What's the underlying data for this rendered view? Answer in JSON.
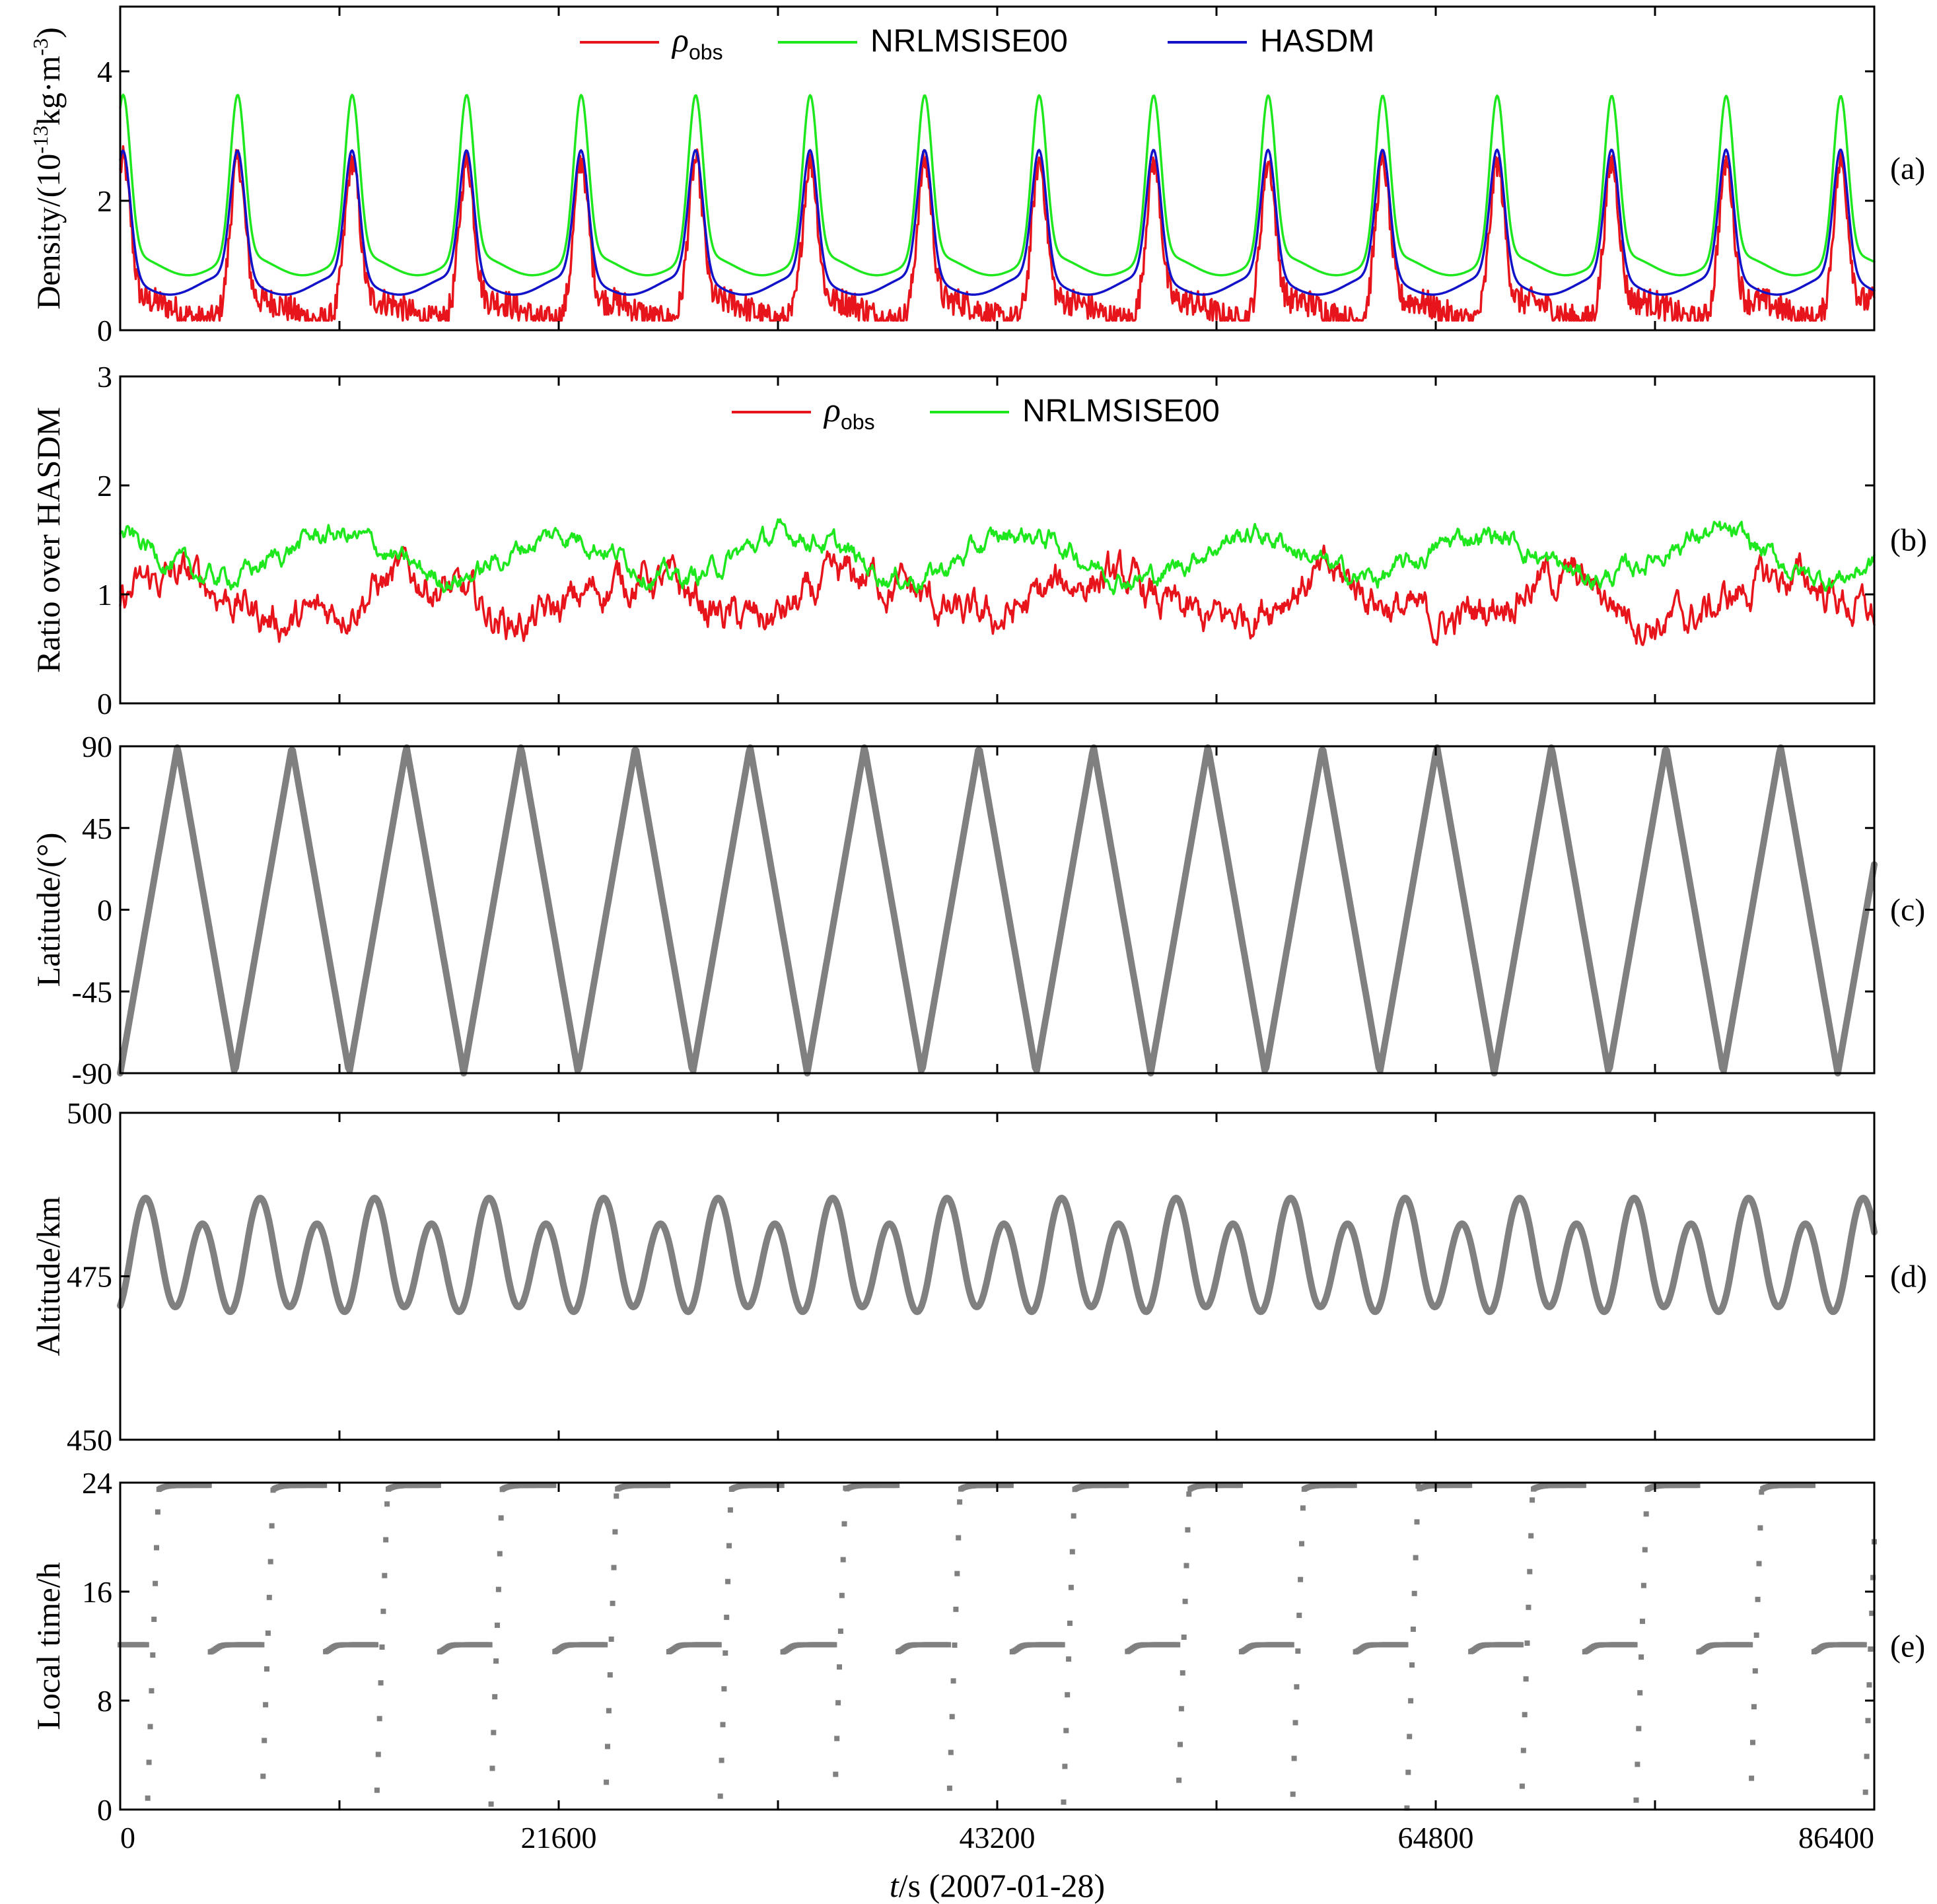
{
  "figure": {
    "x_title_italic": "t",
    "x_title_rest": "/s (2007-01-28)",
    "x_ticks": [
      "0",
      "21600",
      "43200",
      "64800",
      "86400"
    ]
  },
  "chart_data": [
    {
      "panel": "(a)",
      "type": "line",
      "ylabel_main": "Density/(10",
      "ylabel_exp1": "-13",
      "ylabel_mid": "kg·m",
      "ylabel_exp2": "-3",
      "ylabel_end": ")",
      "xlim": [
        0,
        86400
      ],
      "ylim": [
        0,
        5
      ],
      "yticks": [
        "0",
        "2",
        "4"
      ],
      "legend": {
        "placement": "top-center",
        "entries": [
          {
            "symbol": "ρ",
            "sub": "obs",
            "color": "#e8141b"
          },
          {
            "label": "NRLMSISE00",
            "color": "#1ee71e"
          },
          {
            "label": "HASDM",
            "color": "#1212c8"
          }
        ]
      },
      "period_s": 5640,
      "series": [
        {
          "name": "ρobs",
          "color": "#e8141b",
          "min": 0.3,
          "peak": 2.6,
          "noise": 0.22
        },
        {
          "name": "NRLMSISE00",
          "color": "#1ee71e",
          "min": 1.0,
          "peak": 3.5
        },
        {
          "name": "HASDM",
          "color": "#1212c8",
          "min": 0.7,
          "peak": 2.65
        }
      ]
    },
    {
      "panel": "(b)",
      "type": "line",
      "ylabel": "Ratio over HASDM",
      "xlim": [
        0,
        86400
      ],
      "ylim": [
        0,
        3
      ],
      "yticks": [
        "0",
        "1",
        "2",
        "3"
      ],
      "legend": {
        "placement": "top-center",
        "entries": [
          {
            "symbol": "ρ",
            "sub": "obs",
            "color": "#e8141b"
          },
          {
            "label": "NRLMSISE00",
            "color": "#1ee71e"
          }
        ]
      },
      "series": [
        {
          "name": "ρobs",
          "color": "#e8141b",
          "base": 0.95,
          "noise": 0.22
        },
        {
          "name": "NRLMSISE00",
          "color": "#1ee71e",
          "base": 1.35,
          "noise": 0.12
        }
      ]
    },
    {
      "panel": "(c)",
      "type": "line",
      "ylabel": "Latitude/(°)",
      "xlim": [
        0,
        86400
      ],
      "ylim": [
        -90,
        90
      ],
      "yticks": [
        "-90",
        "-45",
        "0",
        "45",
        "90"
      ],
      "series": [
        {
          "name": "latitude",
          "color": "#808080",
          "amplitude": 90,
          "period_s": 5640
        }
      ]
    },
    {
      "panel": "(d)",
      "type": "line",
      "ylabel": "Altitude/km",
      "xlim": [
        0,
        86400
      ],
      "ylim": [
        450,
        500
      ],
      "yticks": [
        "450",
        "475",
        "500"
      ],
      "series": [
        {
          "name": "altitude",
          "color": "#808080",
          "mean": 477.5,
          "amplitude": 7.5,
          "period_s": 2820
        }
      ]
    },
    {
      "panel": "(e)",
      "type": "scatter",
      "ylabel": "Local time/h",
      "xlim": [
        0,
        86400
      ],
      "ylim": [
        0,
        24
      ],
      "yticks": [
        "0",
        "8",
        "16",
        "24"
      ],
      "series": [
        {
          "name": "local time",
          "color": "#808080",
          "ascending_h": 11.8,
          "descending_h": 23.8,
          "period_s": 5640
        }
      ]
    }
  ]
}
